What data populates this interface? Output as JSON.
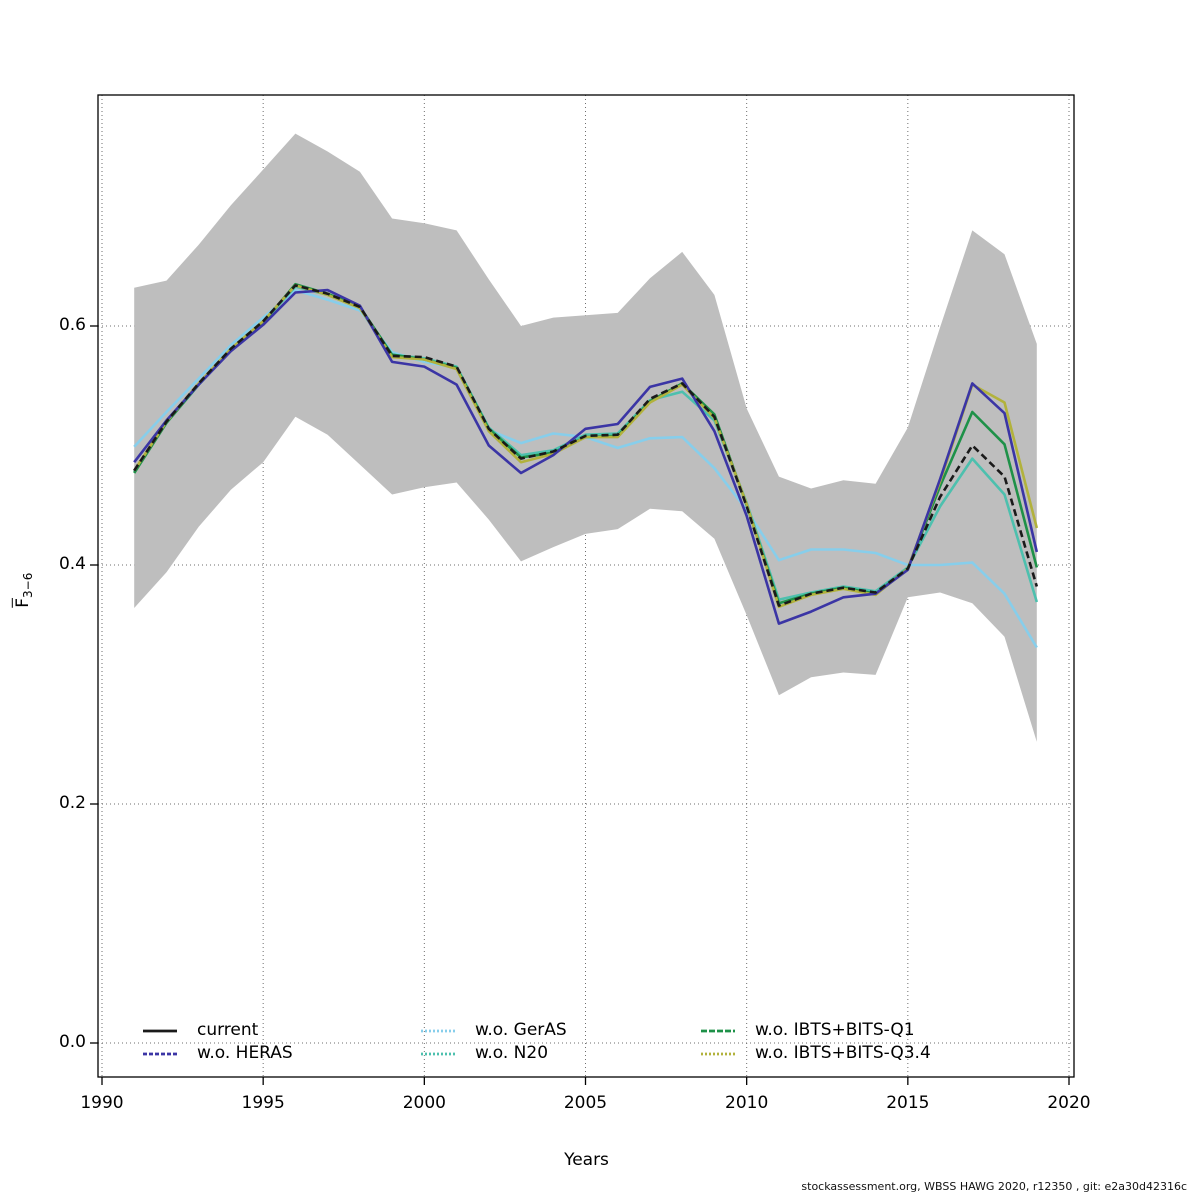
{
  "figure": {
    "xlabel": "Years",
    "ylabel": {
      "base": "F",
      "sub": "3−6"
    },
    "footer": "stockassessment.org, WBSS HAWG 2020, r12350 , git: e2a30d42316c"
  },
  "legend": {
    "items": [
      {
        "label": "current",
        "color": "#1a1a1a",
        "dash": ""
      },
      {
        "label": "w.o. HERAS",
        "color": "#3b35a5",
        "dash": "4 2"
      },
      {
        "label": "w.o. GerAS",
        "color": "#87ceeb",
        "dash": "2 2"
      },
      {
        "label": "w.o. N20",
        "color": "#4dc0ae",
        "dash": "2 2"
      },
      {
        "label": "w.o. IBTS+BITS-Q1",
        "color": "#1e9148",
        "dash": "6 2"
      },
      {
        "label": "w.o. IBTS+BITS-Q3.4",
        "color": "#b2b23c",
        "dash": "2 2"
      }
    ]
  },
  "chart_data": {
    "type": "line",
    "title": "",
    "xlabel": "Years",
    "ylabel": "F̄ 3−6 (mean fishing mortality ages 3-6)",
    "x": [
      1991,
      1992,
      1993,
      1994,
      1995,
      1996,
      1997,
      1998,
      1999,
      2000,
      2001,
      2002,
      2003,
      2004,
      2005,
      2006,
      2007,
      2008,
      2009,
      2010,
      2011,
      2012,
      2013,
      2014,
      2015,
      2016,
      2017,
      2018,
      2019
    ],
    "xlim": [
      1989.8,
      2020.2
    ],
    "ylim": [
      -0.028,
      0.79
    ],
    "x_ticks": [
      1990,
      1995,
      2000,
      2005,
      2010,
      2015,
      2020
    ],
    "y_ticks": [
      0.0,
      0.2,
      0.4,
      0.6
    ],
    "grid": true,
    "legend_position": "bottom",
    "band": {
      "name": "confidence-band",
      "color": "#bebebe",
      "upper": [
        0.632,
        0.638,
        0.668,
        0.701,
        0.731,
        0.761,
        0.746,
        0.729,
        0.69,
        0.686,
        0.68,
        0.639,
        0.6,
        0.607,
        0.609,
        0.611,
        0.64,
        0.662,
        0.626,
        0.531,
        0.474,
        0.464,
        0.471,
        0.468,
        0.515,
        0.599,
        0.68,
        0.66,
        0.585
      ],
      "lower": [
        0.364,
        0.394,
        0.432,
        0.463,
        0.486,
        0.524,
        0.509,
        0.484,
        0.459,
        0.465,
        0.469,
        0.438,
        0.403,
        0.415,
        0.426,
        0.43,
        0.447,
        0.445,
        0.422,
        0.358,
        0.291,
        0.306,
        0.31,
        0.308,
        0.373,
        0.377,
        0.368,
        0.34,
        0.252
      ]
    },
    "series": [
      {
        "name": "wo-geras",
        "label": "w.o. GerAS",
        "color": "#87ceeb",
        "dash": "",
        "values": [
          0.499,
          0.528,
          0.556,
          0.584,
          0.607,
          0.63,
          0.622,
          0.613,
          0.578,
          0.57,
          0.565,
          0.513,
          0.502,
          0.51,
          0.507,
          0.498,
          0.506,
          0.507,
          0.481,
          0.446,
          0.404,
          0.413,
          0.413,
          0.41,
          0.4,
          0.4,
          0.402,
          0.376,
          0.331
        ]
      },
      {
        "name": "wo-n20",
        "label": "w.o. N20",
        "color": "#4dc0ae",
        "dash": "",
        "values": [
          0.478,
          0.519,
          0.551,
          0.58,
          0.603,
          0.633,
          0.626,
          0.615,
          0.576,
          0.573,
          0.566,
          0.515,
          0.492,
          0.496,
          0.509,
          0.51,
          0.538,
          0.545,
          0.521,
          0.452,
          0.371,
          0.377,
          0.382,
          0.378,
          0.398,
          0.449,
          0.489,
          0.459,
          0.369
        ]
      },
      {
        "name": "wo-ibts-bits-q1",
        "label": "w.o. IBTS+BITS-Q1",
        "color": "#1e9148",
        "dash": "",
        "values": [
          0.477,
          0.519,
          0.551,
          0.58,
          0.603,
          0.635,
          0.627,
          0.616,
          0.576,
          0.572,
          0.565,
          0.514,
          0.49,
          0.494,
          0.507,
          0.508,
          0.537,
          0.552,
          0.526,
          0.45,
          0.368,
          0.376,
          0.381,
          0.376,
          0.397,
          0.466,
          0.528,
          0.501,
          0.398
        ]
      },
      {
        "name": "wo-ibts-bits-q34",
        "label": "w.o. IBTS+BITS-Q3.4",
        "color": "#b2b23c",
        "dash": "",
        "values": [
          0.479,
          0.52,
          0.552,
          0.581,
          0.604,
          0.634,
          0.626,
          0.615,
          0.574,
          0.572,
          0.564,
          0.512,
          0.486,
          0.493,
          0.507,
          0.507,
          0.536,
          0.551,
          0.523,
          0.451,
          0.365,
          0.375,
          0.38,
          0.375,
          0.397,
          0.47,
          0.551,
          0.536,
          0.431
        ]
      },
      {
        "name": "wo-heras",
        "label": "w.o. HERAS",
        "color": "#3b35a5",
        "dash": "",
        "values": [
          0.486,
          0.521,
          0.551,
          0.579,
          0.601,
          0.628,
          0.63,
          0.617,
          0.57,
          0.566,
          0.551,
          0.5,
          0.477,
          0.492,
          0.514,
          0.518,
          0.549,
          0.556,
          0.512,
          0.441,
          0.351,
          0.361,
          0.373,
          0.376,
          0.396,
          0.472,
          0.552,
          0.527,
          0.411
        ]
      },
      {
        "name": "current",
        "label": "current",
        "color": "#1a1a1a",
        "dash": "7 4",
        "values": [
          0.479,
          0.52,
          0.552,
          0.581,
          0.604,
          0.634,
          0.627,
          0.616,
          0.575,
          0.574,
          0.566,
          0.514,
          0.489,
          0.495,
          0.508,
          0.509,
          0.539,
          0.552,
          0.524,
          0.449,
          0.366,
          0.376,
          0.381,
          0.377,
          0.397,
          0.457,
          0.5,
          0.474,
          0.382
        ]
      }
    ]
  }
}
